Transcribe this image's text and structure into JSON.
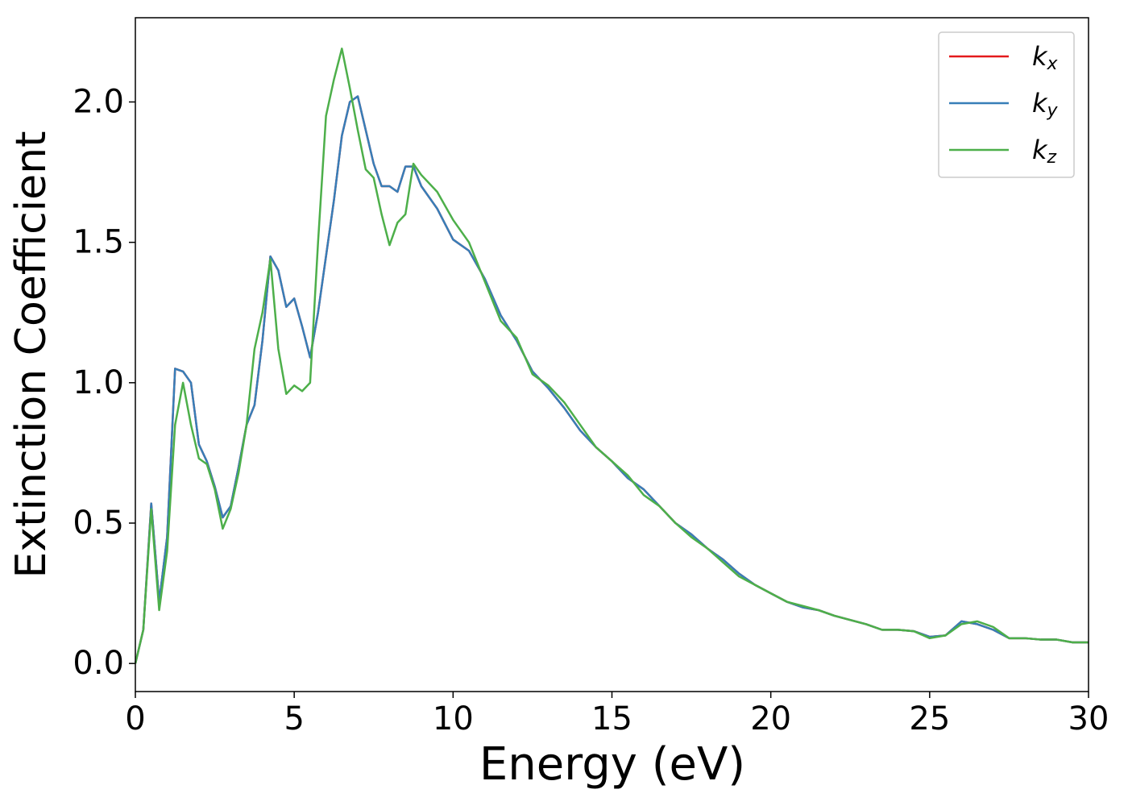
{
  "chart_data": {
    "type": "line",
    "xlabel": "Energy (eV)",
    "ylabel": "Extinction Coefficient",
    "x": [
      0,
      0.25,
      0.5,
      0.75,
      1.0,
      1.25,
      1.5,
      1.75,
      2.0,
      2.25,
      2.5,
      2.75,
      3.0,
      3.25,
      3.5,
      3.75,
      4.0,
      4.25,
      4.5,
      4.75,
      5.0,
      5.25,
      5.5,
      5.75,
      6.0,
      6.25,
      6.5,
      6.75,
      7.0,
      7.25,
      7.5,
      7.75,
      8.0,
      8.25,
      8.5,
      8.75,
      9.0,
      9.5,
      10,
      10.5,
      11,
      11.5,
      12,
      12.5,
      13,
      13.5,
      14,
      14.5,
      15,
      15.5,
      16,
      16.5,
      17,
      17.5,
      18,
      18.5,
      19,
      19.5,
      20,
      20.5,
      21,
      21.5,
      22,
      22.5,
      23,
      23.5,
      24,
      24.5,
      25,
      25.5,
      26,
      26.5,
      27,
      27.5,
      28,
      28.5,
      29,
      29.5,
      30
    ],
    "series": [
      {
        "name": "kx",
        "color": "#e41a1c",
        "values": [
          0,
          0.12,
          0.57,
          0.22,
          0.45,
          1.05,
          1.04,
          1.0,
          0.78,
          0.72,
          0.63,
          0.52,
          0.56,
          0.7,
          0.85,
          0.92,
          1.15,
          1.45,
          1.4,
          1.27,
          1.3,
          1.2,
          1.09,
          1.25,
          1.45,
          1.65,
          1.88,
          2.0,
          2.02,
          1.9,
          1.78,
          1.7,
          1.7,
          1.68,
          1.77,
          1.77,
          1.7,
          1.62,
          1.51,
          1.47,
          1.37,
          1.24,
          1.15,
          1.04,
          0.98,
          0.91,
          0.83,
          0.77,
          0.72,
          0.66,
          0.62,
          0.56,
          0.5,
          0.46,
          0.41,
          0.37,
          0.32,
          0.28,
          0.25,
          0.22,
          0.2,
          0.19,
          0.17,
          0.155,
          0.14,
          0.12,
          0.12,
          0.115,
          0.095,
          0.1,
          0.15,
          0.14,
          0.12,
          0.09,
          0.09,
          0.085,
          0.085,
          0.075,
          0.075
        ]
      },
      {
        "name": "ky",
        "color": "#377eb8",
        "values": [
          0,
          0.12,
          0.57,
          0.22,
          0.45,
          1.05,
          1.04,
          1.0,
          0.78,
          0.72,
          0.63,
          0.52,
          0.56,
          0.7,
          0.85,
          0.92,
          1.15,
          1.45,
          1.4,
          1.27,
          1.3,
          1.2,
          1.09,
          1.25,
          1.45,
          1.65,
          1.88,
          2.0,
          2.02,
          1.9,
          1.78,
          1.7,
          1.7,
          1.68,
          1.77,
          1.77,
          1.7,
          1.62,
          1.51,
          1.47,
          1.37,
          1.24,
          1.15,
          1.04,
          0.98,
          0.91,
          0.83,
          0.77,
          0.72,
          0.66,
          0.62,
          0.56,
          0.5,
          0.46,
          0.41,
          0.37,
          0.32,
          0.28,
          0.25,
          0.22,
          0.2,
          0.19,
          0.17,
          0.155,
          0.14,
          0.12,
          0.12,
          0.115,
          0.095,
          0.1,
          0.15,
          0.14,
          0.12,
          0.09,
          0.09,
          0.085,
          0.085,
          0.075,
          0.075
        ]
      },
      {
        "name": "kz",
        "color": "#4daf4a",
        "values": [
          0,
          0.12,
          0.55,
          0.19,
          0.4,
          0.85,
          1.0,
          0.85,
          0.73,
          0.71,
          0.62,
          0.48,
          0.55,
          0.68,
          0.85,
          1.12,
          1.25,
          1.44,
          1.12,
          0.96,
          0.99,
          0.97,
          1.0,
          1.5,
          1.95,
          2.08,
          2.19,
          2.05,
          1.9,
          1.76,
          1.73,
          1.6,
          1.49,
          1.57,
          1.6,
          1.78,
          1.74,
          1.68,
          1.58,
          1.5,
          1.36,
          1.22,
          1.16,
          1.03,
          0.99,
          0.93,
          0.85,
          0.77,
          0.72,
          0.67,
          0.6,
          0.56,
          0.5,
          0.45,
          0.41,
          0.36,
          0.31,
          0.28,
          0.25,
          0.22,
          0.205,
          0.19,
          0.17,
          0.155,
          0.14,
          0.12,
          0.12,
          0.115,
          0.09,
          0.1,
          0.14,
          0.15,
          0.13,
          0.09,
          0.09,
          0.085,
          0.085,
          0.075,
          0.075
        ]
      }
    ],
    "xlim": [
      0,
      30
    ],
    "xticks": [
      0,
      5,
      10,
      15,
      20,
      25,
      30
    ],
    "ylim": [
      -0.1,
      2.3
    ],
    "yticks": [
      {
        "value": 0,
        "label": "0.0"
      },
      0.5,
      {
        "value": 1,
        "label": "1.0"
      },
      1.5,
      {
        "value": 2,
        "label": "2.0"
      }
    ],
    "legend": "upper right"
  }
}
